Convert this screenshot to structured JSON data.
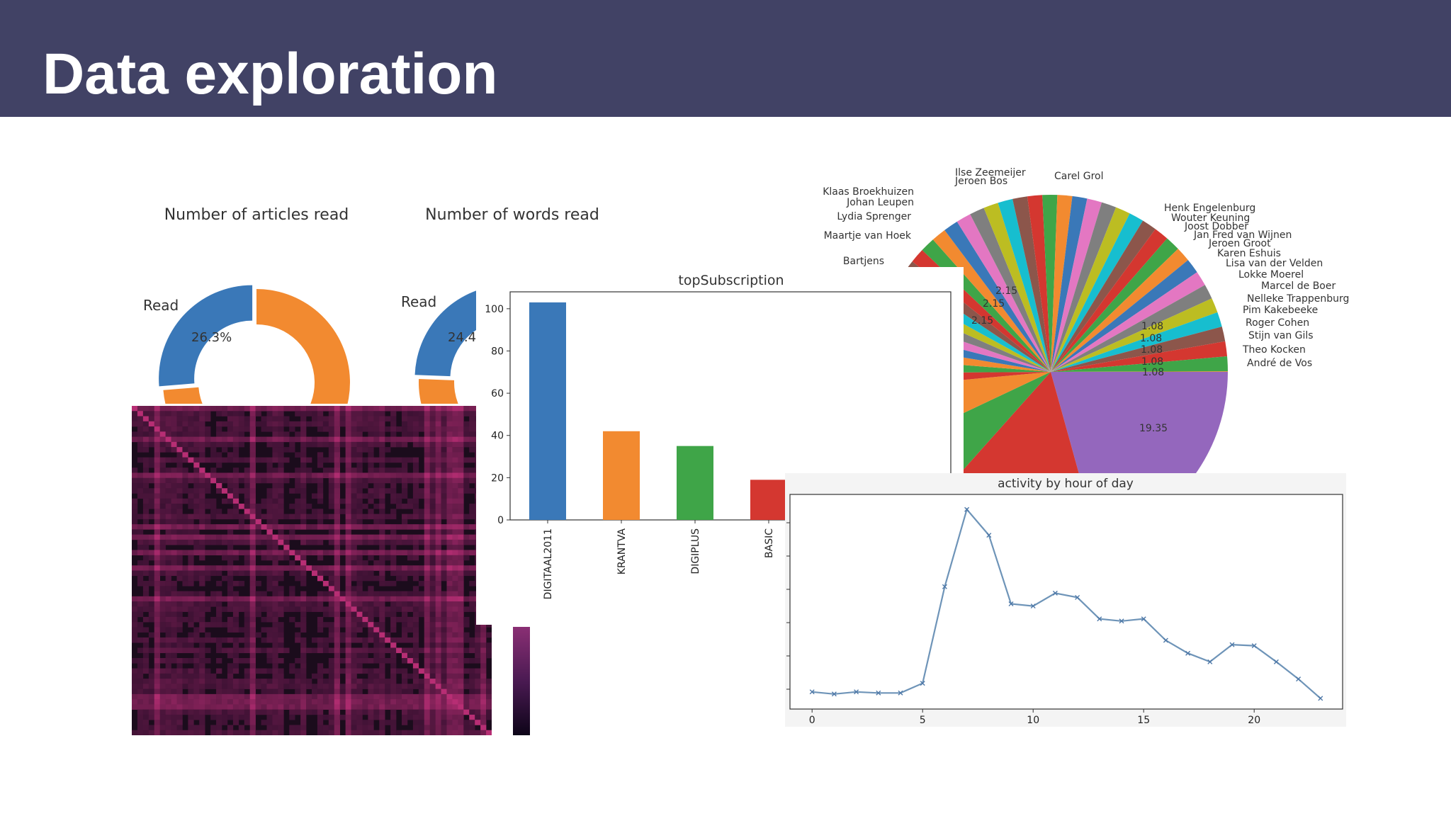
{
  "slide": {
    "title": "Data exploration"
  },
  "colors": {
    "header": "#414265",
    "blue": "#3a78b8",
    "orange": "#f28a30",
    "green": "#3fa548",
    "red": "#d43730",
    "purple": "#9467bd",
    "line": "#6e94b8",
    "heatmap_bg": "#1b0c1c"
  },
  "chart_data": [
    {
      "type": "pie",
      "title": "Number of articles read",
      "labels": [
        "Read",
        ""
      ],
      "values": [
        26.3,
        73.7
      ],
      "data_labels": [
        "26.3%"
      ],
      "donut": true
    },
    {
      "type": "pie",
      "title": "Number of words read",
      "labels": [
        "Read",
        ""
      ],
      "data_labels": [
        "24.4"
      ],
      "donut": true
    },
    {
      "type": "bar",
      "title": "topSubscription",
      "categories": [
        "DIGITAAL2011",
        "KRANTVA",
        "DIGIPLUS",
        "BASIC"
      ],
      "values": [
        103,
        42,
        35,
        19
      ],
      "colors": [
        "#3a78b8",
        "#f28a30",
        "#3fa548",
        "#d43730"
      ],
      "yticks": [
        0,
        20,
        40,
        60,
        80,
        100
      ],
      "ylim": [
        0,
        108
      ]
    },
    {
      "type": "line",
      "title": "activity by hour of day",
      "x": [
        0,
        1,
        2,
        3,
        4,
        5,
        6,
        7,
        8,
        9,
        10,
        11,
        12,
        13,
        14,
        15,
        16,
        17,
        18,
        19,
        20,
        21,
        22,
        23
      ],
      "y": [
        3,
        2,
        3,
        2.5,
        2.5,
        7,
        52,
        88,
        76,
        44,
        43,
        49,
        47,
        37,
        36,
        37,
        27,
        21,
        17,
        25,
        24.5,
        17,
        9,
        0
      ],
      "xticks": [
        0,
        5,
        10,
        15,
        20
      ],
      "xlim": [
        -1,
        24
      ],
      "ylim": [
        -5,
        95
      ]
    },
    {
      "type": "pie",
      "labels": [
        "Ilse Zeemeijer",
        "Jeroen Bos",
        "Klaas Broekhuizen",
        "Johan Leupen",
        "Lydia Sprenger",
        "Maartje van Hoek",
        "Bartjens",
        "Carel Grol",
        "Henk Engelenburg",
        "Wouter Keuning",
        "Joost Dobber",
        "Jan Fred van Wijnen",
        "Jeroen Groot",
        "Karen Eshuis",
        "Lisa van der Velden",
        "Lokke Moerel",
        "Marcel de Boer",
        "Nelleke Trappenburg",
        "Pim Kakebeeke",
        "Roger Cohen",
        "Stijn van Gils",
        "Theo Kocken",
        "André de Vos"
      ],
      "data_labels": [
        "19.35",
        "2.15",
        "2.15",
        "2.15",
        "1.08",
        "1.08",
        "1.08",
        "1.08",
        "1.08"
      ]
    },
    {
      "type": "heatmap",
      "colormap": "magma"
    }
  ]
}
